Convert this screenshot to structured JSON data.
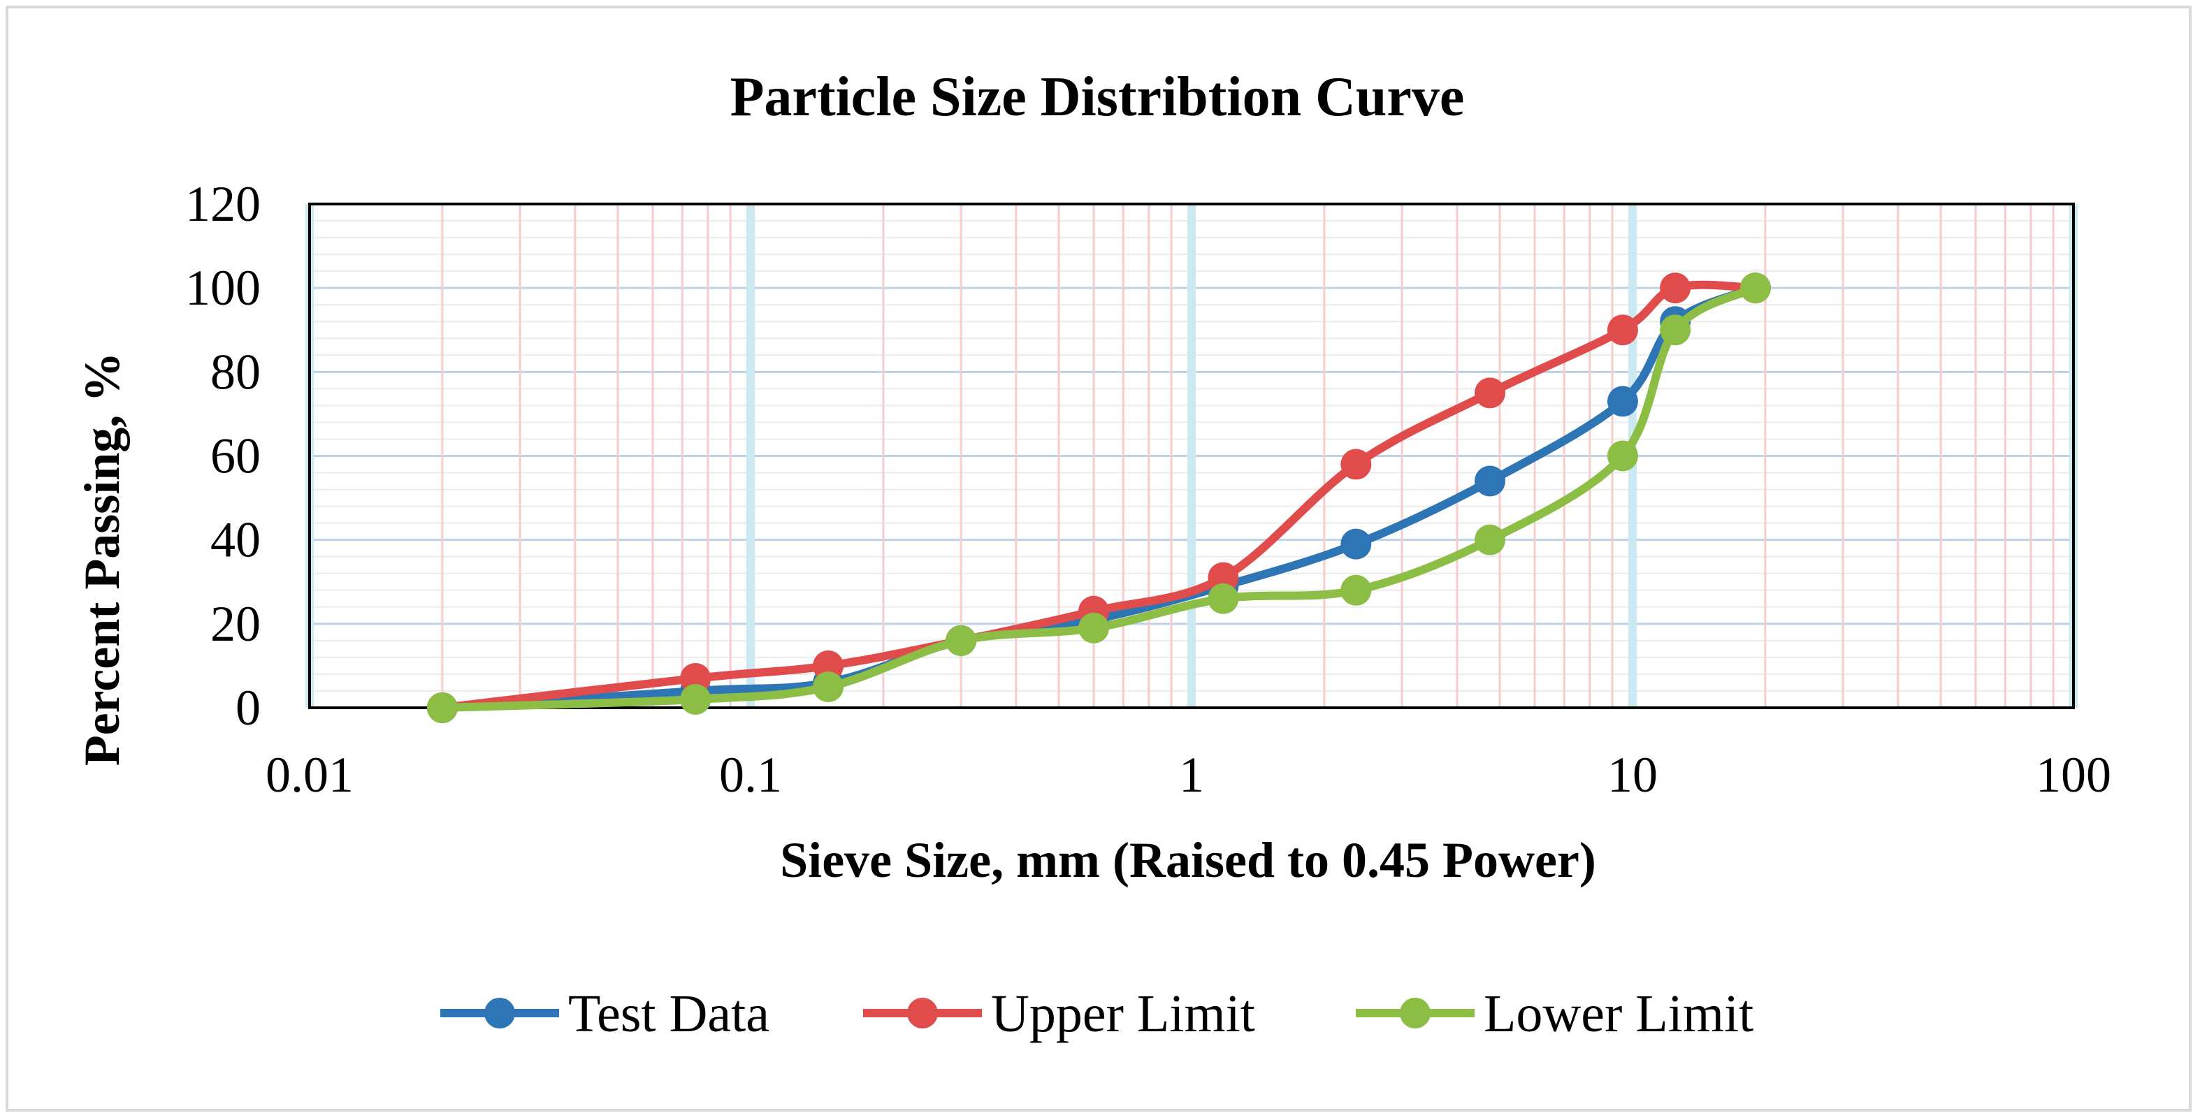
{
  "chart_data": {
    "type": "line",
    "title": "Particle Size Distribtion Curve",
    "xlabel": "Sieve Size, mm (Raised to 0.45 Power)",
    "ylabel": "Percent Passing, %",
    "xscale": "log",
    "xlim": [
      0.01,
      100
    ],
    "ylim": [
      0,
      120
    ],
    "xticks": [
      0.01,
      0.1,
      1,
      10,
      100
    ],
    "xtick_labels": [
      "0.01",
      "0.1",
      "1",
      "10",
      "100"
    ],
    "yticks": [
      0,
      20,
      40,
      60,
      80,
      100,
      120
    ],
    "ytick_labels": [
      "0",
      "20",
      "40",
      "60",
      "80",
      "100",
      "120"
    ],
    "legend_position": "bottom",
    "grid": true,
    "series": [
      {
        "name": "Test Data",
        "color": "#2e75b6",
        "x": [
          0.02,
          0.075,
          0.15,
          0.3,
          0.6,
          1.18,
          2.36,
          4.75,
          9.5,
          12.5,
          19
        ],
        "y": [
          0,
          4,
          6,
          16,
          21,
          29,
          39,
          54,
          73,
          92,
          100
        ]
      },
      {
        "name": "Upper Limit",
        "color": "#e04b4b",
        "x": [
          0.02,
          0.075,
          0.15,
          0.3,
          0.6,
          1.18,
          2.36,
          4.75,
          9.5,
          12.5,
          19
        ],
        "y": [
          0,
          7,
          10,
          16,
          23,
          31,
          58,
          75,
          90,
          100,
          100
        ]
      },
      {
        "name": "Lower Limit",
        "color": "#8cbd45",
        "x": [
          0.02,
          0.075,
          0.15,
          0.3,
          0.6,
          1.18,
          2.36,
          4.75,
          9.5,
          12.5,
          19
        ],
        "y": [
          0,
          2,
          5,
          16,
          19,
          26,
          28,
          40,
          60,
          90,
          100
        ]
      }
    ]
  }
}
